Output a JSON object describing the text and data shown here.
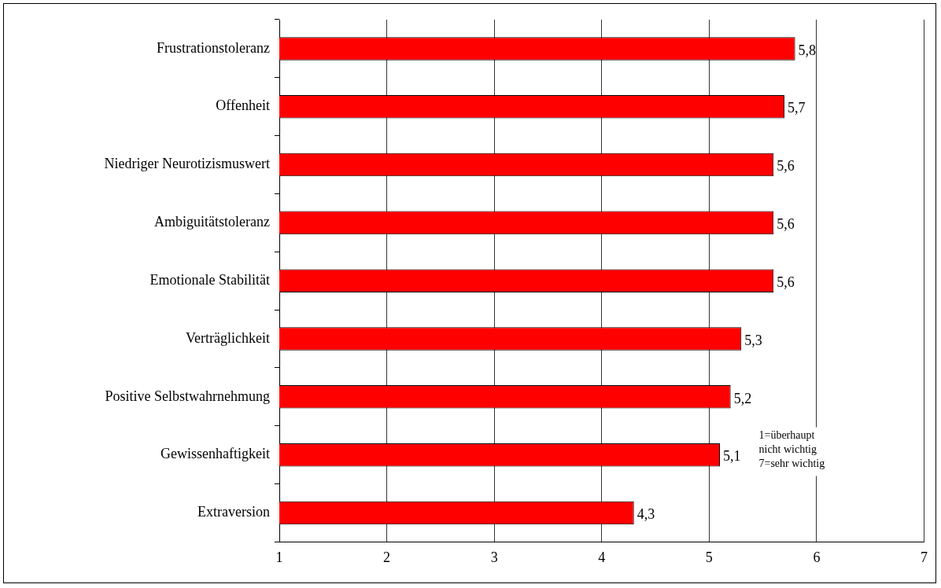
{
  "chart_data": {
    "type": "bar",
    "orientation": "horizontal",
    "categories": [
      "Frustrationstoleranz",
      "Offenheit",
      "Niedriger Neurotizismuswert",
      "Ambiguitätstoleranz",
      "Emotionale Stabilität",
      "Verträglichkeit",
      "Positive Selbstwahrnehmung",
      "Gewissenhaftigkeit",
      "Extraversion"
    ],
    "values": [
      5.8,
      5.7,
      5.6,
      5.6,
      5.6,
      5.3,
      5.2,
      5.1,
      4.3
    ],
    "value_labels": [
      "5,8",
      "5,7",
      "5,6",
      "5,6",
      "5,6",
      "5,3",
      "5,2",
      "5,1",
      "4,3"
    ],
    "color": "#ff0000",
    "xlim": [
      1,
      7
    ],
    "xticks": [
      1,
      2,
      3,
      4,
      5,
      6,
      7
    ],
    "grid": "x",
    "annotations": [
      "1=überhaupt\nnicht wichtig\n7=sehr wichtig"
    ]
  }
}
